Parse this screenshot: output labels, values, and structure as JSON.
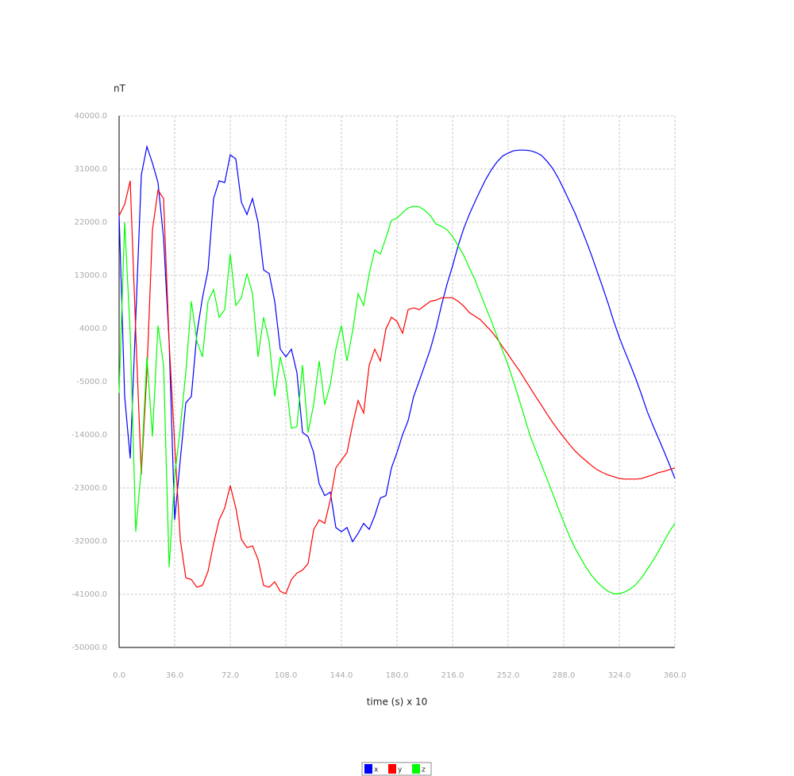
{
  "chart_data": {
    "type": "line",
    "y_label": "nT",
    "x_label": "time (s) x 10",
    "x": [
      0,
      3.6,
      7.2,
      10.8,
      14.4,
      18,
      21.6,
      25.2,
      28.8,
      32.4,
      36,
      39.6,
      43.2,
      46.8,
      50.4,
      54,
      57.6,
      61.2,
      64.8,
      68.4,
      72,
      75.6,
      79.2,
      82.8,
      86.4,
      90,
      93.6,
      97.2,
      100.8,
      104.4,
      108,
      111.6,
      115.2,
      118.8,
      122.4,
      126,
      129.6,
      133.2,
      136.8,
      140.4,
      144,
      147.6,
      151.2,
      154.8,
      158.4,
      162,
      165.6,
      169.2,
      172.8,
      176.4,
      180,
      183.6,
      187.2,
      190.8,
      194.4,
      198,
      201.6,
      205.2,
      208.8,
      212.4,
      216,
      219.6,
      223.2,
      226.8,
      230.4,
      234,
      237.6,
      241.2,
      244.8,
      248.4,
      252,
      255.6,
      259.2,
      262.8,
      266.4,
      270,
      273.6,
      277.2,
      280.8,
      284.4,
      288,
      291.6,
      295.2,
      298.8,
      302.4,
      306,
      309.6,
      313.2,
      316.8,
      320.4,
      324,
      327.6,
      331.2,
      334.8,
      338.4,
      342,
      345.6,
      349.2,
      352.8,
      356.4,
      360
    ],
    "series": [
      {
        "name": "x",
        "color": "#0000ff",
        "values": [
          23300,
          -7500,
          -18000,
          5900,
          30000,
          34800,
          32000,
          28700,
          19300,
          1800,
          -28400,
          -18300,
          -8600,
          -7500,
          3200,
          9200,
          13900,
          26000,
          29000,
          28700,
          33400,
          32700,
          25400,
          23300,
          26000,
          22000,
          13900,
          13300,
          8600,
          500,
          -800,
          500,
          -3500,
          -13600,
          -14300,
          -17000,
          -22300,
          -24300,
          -23700,
          -29700,
          -30400,
          -29700,
          -32100,
          -30700,
          -29000,
          -30000,
          -27700,
          -24700,
          -24300,
          -19600,
          -17000,
          -14000,
          -11600,
          -7500,
          -4900,
          -2200,
          500,
          3900,
          7900,
          11500,
          14600,
          18000,
          20900,
          23300,
          25400,
          27400,
          29300,
          30900,
          32200,
          33200,
          33700,
          34100,
          34200,
          34200,
          34100,
          33800,
          33300,
          32300,
          31100,
          29500,
          27600,
          25600,
          23600,
          21300,
          18900,
          16400,
          13700,
          11000,
          8200,
          5200,
          2500,
          100,
          -2200,
          -4600,
          -7200,
          -10000,
          -12300,
          -14500,
          -16700,
          -19000,
          -21400
        ]
      },
      {
        "name": "y",
        "color": "#ff0000",
        "values": [
          23100,
          25000,
          29000,
          3200,
          -20700,
          -3500,
          20700,
          27400,
          26000,
          1800,
          -15600,
          -31700,
          -38200,
          -38500,
          -39800,
          -39500,
          -37100,
          -32400,
          -28400,
          -26400,
          -22600,
          -26400,
          -31700,
          -33100,
          -32800,
          -35100,
          -39500,
          -39800,
          -38900,
          -40500,
          -40900,
          -38500,
          -37400,
          -36900,
          -35800,
          -30100,
          -28400,
          -29000,
          -25000,
          -19600,
          -18300,
          -17000,
          -12300,
          -8200,
          -10300,
          -2200,
          500,
          -1500,
          3900,
          5900,
          5200,
          3200,
          7200,
          7500,
          7200,
          7900,
          8600,
          8800,
          9200,
          9200,
          9200,
          8600,
          7800,
          6700,
          6100,
          5500,
          4500,
          3500,
          2300,
          900,
          -400,
          -1800,
          -3100,
          -4600,
          -6100,
          -7600,
          -9000,
          -10500,
          -11900,
          -13200,
          -14400,
          -15600,
          -16700,
          -17600,
          -18400,
          -19200,
          -19900,
          -20400,
          -20800,
          -21100,
          -21400,
          -21500,
          -21500,
          -21500,
          -21400,
          -21100,
          -20800,
          -20400,
          -20200,
          -19900,
          -19600
        ]
      },
      {
        "name": "z",
        "color": "#00ff00",
        "values": [
          -6900,
          22000,
          3200,
          -30400,
          -19600,
          -800,
          -14300,
          4500,
          -2200,
          -36400,
          -21000,
          -12900,
          -3500,
          8600,
          1800,
          -800,
          8600,
          10600,
          5900,
          7200,
          16600,
          7900,
          9200,
          13300,
          9900,
          -800,
          5900,
          1800,
          -7500,
          -800,
          -4900,
          -12900,
          -12600,
          -2200,
          -13600,
          -8900,
          -1500,
          -8900,
          -5500,
          500,
          4500,
          -1500,
          3500,
          9900,
          7900,
          13300,
          17300,
          16600,
          19300,
          22300,
          22700,
          23600,
          24400,
          24700,
          24600,
          24000,
          23100,
          21700,
          21300,
          20700,
          19600,
          18000,
          16400,
          14300,
          12300,
          9900,
          7500,
          5200,
          2700,
          200,
          -2200,
          -5100,
          -8100,
          -11200,
          -14300,
          -16700,
          -19100,
          -21500,
          -23900,
          -26400,
          -28800,
          -31100,
          -33100,
          -34800,
          -36400,
          -37800,
          -38900,
          -39800,
          -40500,
          -40900,
          -40900,
          -40600,
          -40100,
          -39300,
          -38200,
          -36800,
          -35400,
          -33800,
          -32100,
          -30400,
          -29000
        ]
      }
    ],
    "xlim": [
      0,
      360
    ],
    "xticks": [
      {
        "value": 0,
        "label": "0.0"
      },
      {
        "value": 36,
        "label": "36.0"
      },
      {
        "value": 72,
        "label": "72.0"
      },
      {
        "value": 108,
        "label": "108.0"
      },
      {
        "value": 144,
        "label": "144.0"
      },
      {
        "value": 180,
        "label": "180.0"
      },
      {
        "value": 216,
        "label": "216.0"
      },
      {
        "value": 252,
        "label": "252.0"
      },
      {
        "value": 288,
        "label": "288.0"
      },
      {
        "value": 324,
        "label": "324.0"
      },
      {
        "value": 360,
        "label": "360.0"
      }
    ],
    "ylim": [
      -50000,
      40000
    ],
    "yticks": [
      {
        "value": -50000,
        "label": "-50000.0"
      },
      {
        "value": -41000,
        "label": "-41000.0"
      },
      {
        "value": -32000,
        "label": "-32000.0"
      },
      {
        "value": -23000,
        "label": "-23000.0"
      },
      {
        "value": -14000,
        "label": "-14000.0"
      },
      {
        "value": -5000,
        "label": "-5000.0"
      },
      {
        "value": 4000,
        "label": "4000.0"
      },
      {
        "value": 13000,
        "label": "13000.0"
      },
      {
        "value": 22000,
        "label": "22000.0"
      },
      {
        "value": 31000,
        "label": "31000.0"
      },
      {
        "value": 40000,
        "label": "40000.0"
      }
    ],
    "grid": true
  }
}
